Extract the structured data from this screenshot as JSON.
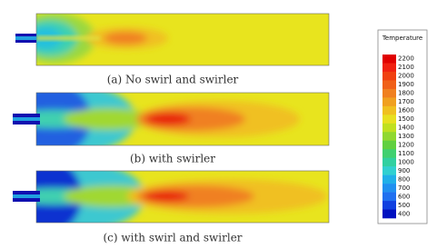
{
  "figure": {
    "panels": [
      {
        "caption": "(a) No swirl and swirler"
      },
      {
        "caption": "(b) with swirler"
      },
      {
        "caption": "(c) with swirl and swirler"
      }
    ],
    "legend": {
      "title": "Temperature",
      "levels": [
        2200,
        2100,
        2000,
        1900,
        1800,
        1700,
        1600,
        1500,
        1400,
        1300,
        1200,
        1100,
        1000,
        900,
        800,
        700,
        600,
        500,
        400
      ]
    }
  }
}
